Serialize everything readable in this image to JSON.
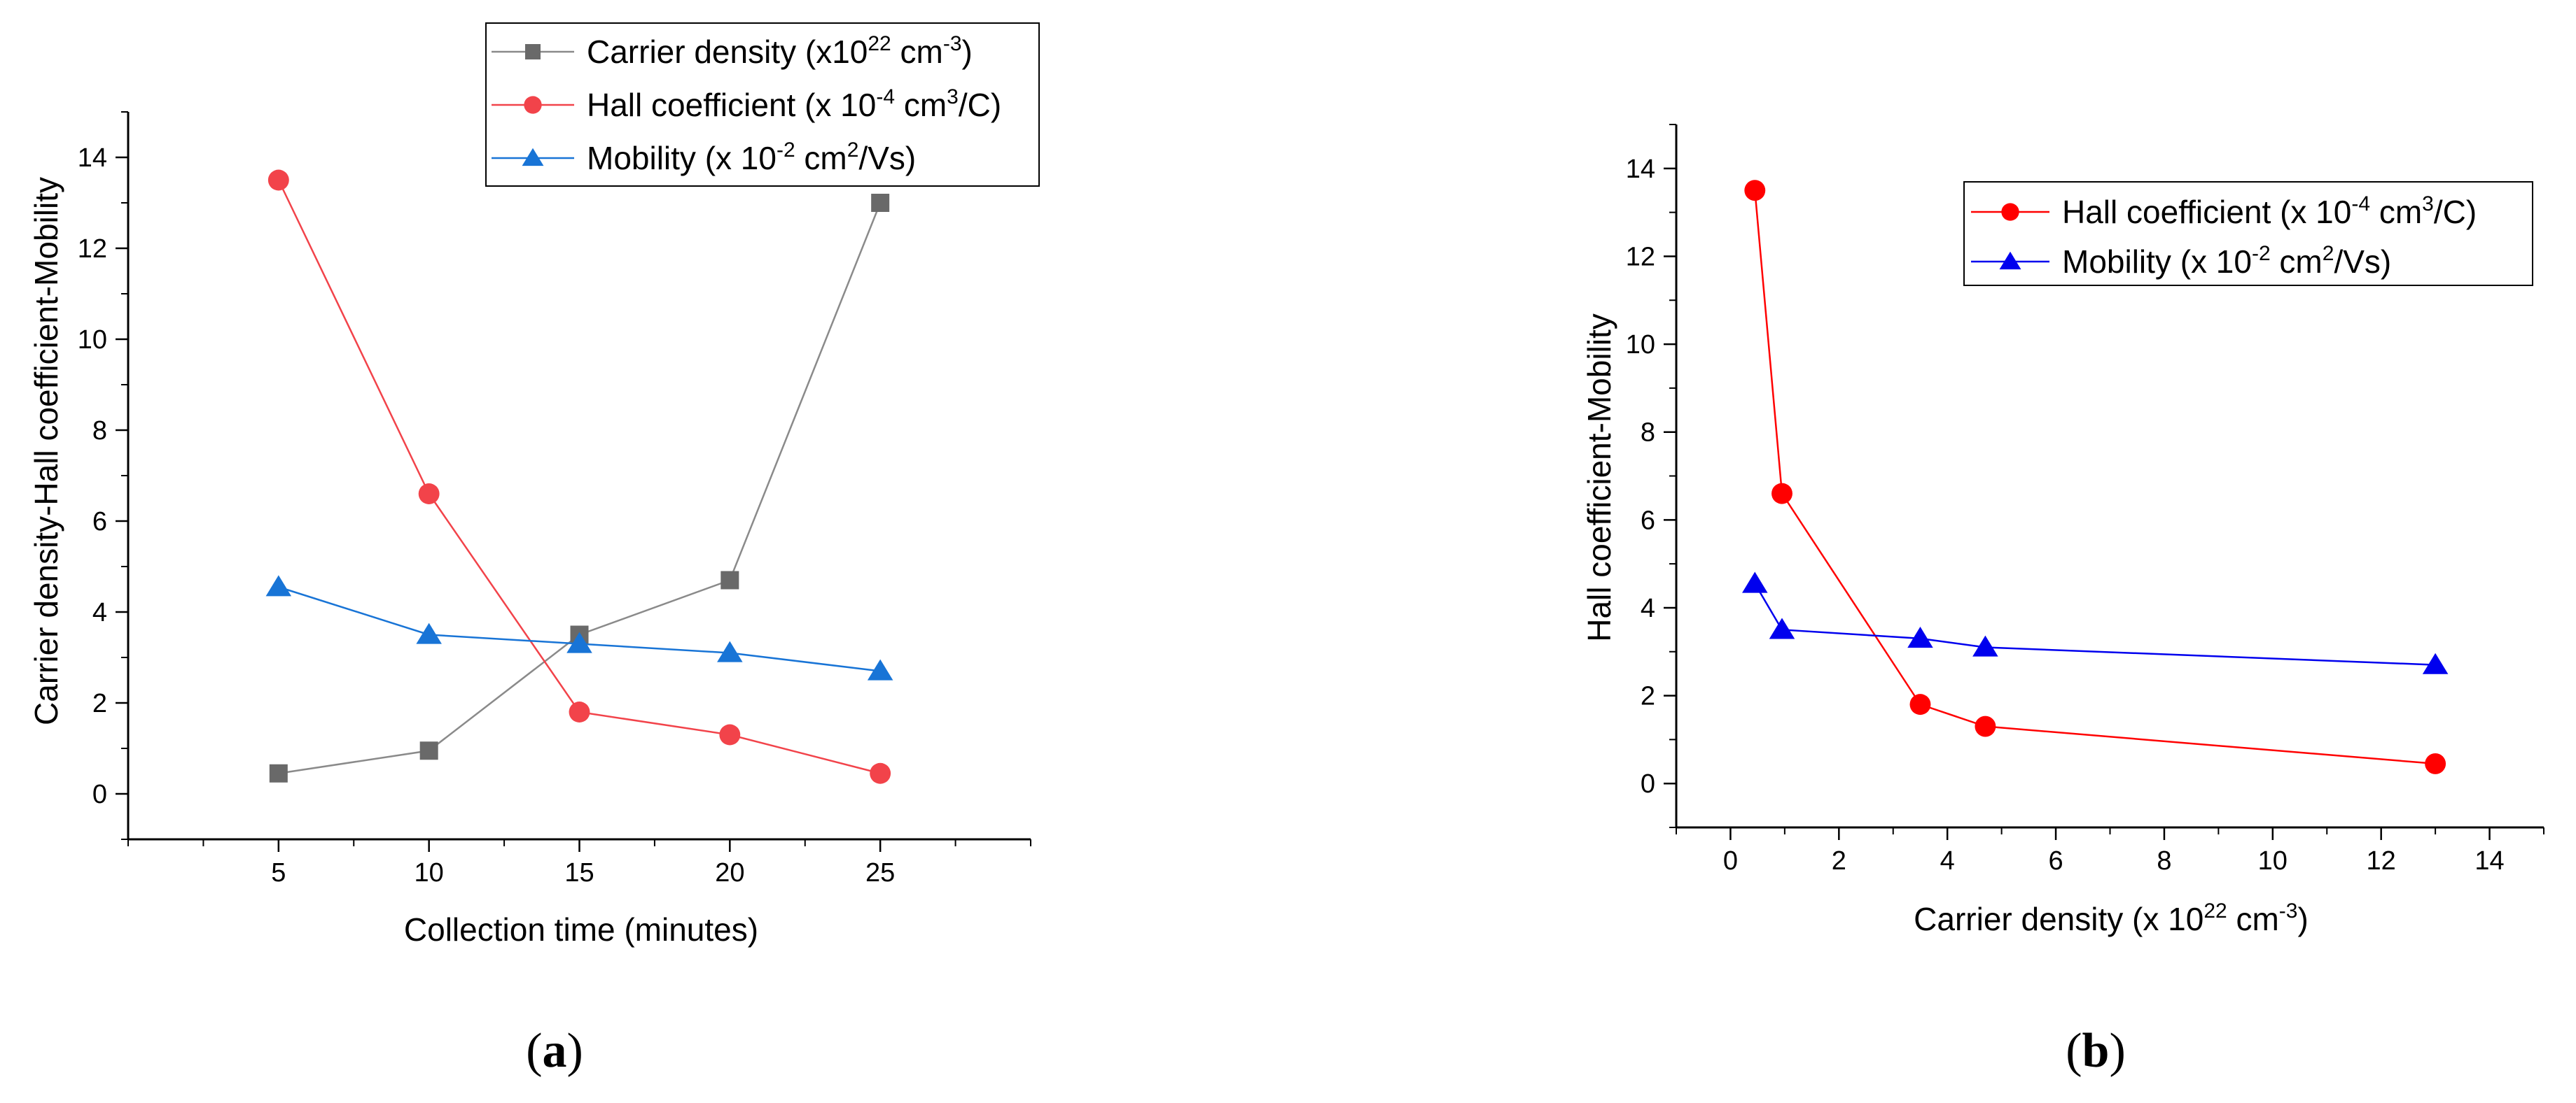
{
  "chart_data": [
    {
      "panel": "a",
      "type": "line",
      "panel_label": {
        "open": "(",
        "letter": "a",
        "close": ")"
      },
      "xlabel": "Collection time (minutes)",
      "ylabel": "Carrier density-Hall coefficient-Mobility",
      "xlim": [
        0,
        30
      ],
      "ylim": [
        -1,
        15
      ],
      "xticks": [
        5,
        10,
        15,
        20,
        25
      ],
      "yticks": [
        0,
        2,
        4,
        6,
        8,
        10,
        12,
        14
      ],
      "x": [
        5,
        10,
        15,
        20,
        25
      ],
      "series": [
        {
          "name": "Carrier density (x10<sup>22</sup> cm<sup>-3</sup>)",
          "legend": {
            "pre": "Carrier density (x10",
            "sup1": "22",
            "mid": " cm",
            "sup2": "-3",
            "post": ")"
          },
          "color": "#696969",
          "line_color": "#8a8a8a",
          "marker": "square",
          "values": [
            0.45,
            0.95,
            3.5,
            4.7,
            13.0
          ]
        },
        {
          "name": "Hall coefficient (x 10-4 cm3/C)",
          "legend": {
            "pre": "Hall coefficient (x 10",
            "sup1": "-4",
            "mid": " cm",
            "sup2": "3",
            "post": "/C)"
          },
          "color": "#f2434a",
          "line_color": "#f2434a",
          "marker": "circle",
          "values": [
            13.5,
            6.6,
            1.8,
            1.3,
            0.45
          ]
        },
        {
          "name": "Mobility (x 10-2 cm2/Vs)",
          "legend": {
            "pre": "Mobility (x 10",
            "sup1": "-2",
            "mid": " cm",
            "sup2": "2",
            "post": "/Vs)"
          },
          "color": "#1874d6",
          "line_color": "#1874d6",
          "marker": "triangle",
          "values": [
            4.55,
            3.5,
            3.3,
            3.1,
            2.7
          ]
        }
      ]
    },
    {
      "panel": "b",
      "type": "line",
      "panel_label": {
        "open": "(",
        "letter": "b",
        "close": ")"
      },
      "xlabel": {
        "pre": "Carrier density (x 10",
        "sup": "22",
        "post": " cm",
        "sup2": "-3",
        "end": ")"
      },
      "ylabel": "Hall coefficient-Mobility",
      "xlim": [
        -1,
        15
      ],
      "ylim": [
        -1,
        15
      ],
      "xticks": [
        0,
        2,
        4,
        6,
        8,
        10,
        12,
        14
      ],
      "yticks": [
        0,
        2,
        4,
        6,
        8,
        10,
        12,
        14
      ],
      "x": [
        0.45,
        0.95,
        3.5,
        4.7,
        13.0
      ],
      "series": [
        {
          "name": "Hall coefficient (x 10-4 cm3/C)",
          "legend": {
            "pre": "Hall coefficient (x 10",
            "sup1": "-4",
            "mid": " cm",
            "sup2": "3",
            "post": "/C)"
          },
          "color": "#ff0000",
          "line_color": "#ff0000",
          "marker": "circle",
          "values": [
            13.5,
            6.6,
            1.8,
            1.3,
            0.45
          ]
        },
        {
          "name": "Mobility (x 10-2 cm2/Vs)",
          "legend": {
            "pre": "Mobility (x 10",
            "sup1": "-2",
            "mid": " cm",
            "sup2": "2",
            "post": "/Vs)"
          },
          "color": "#0000ee",
          "line_color": "#0000ee",
          "marker": "triangle",
          "values": [
            4.55,
            3.5,
            3.3,
            3.1,
            2.7
          ]
        }
      ]
    }
  ]
}
